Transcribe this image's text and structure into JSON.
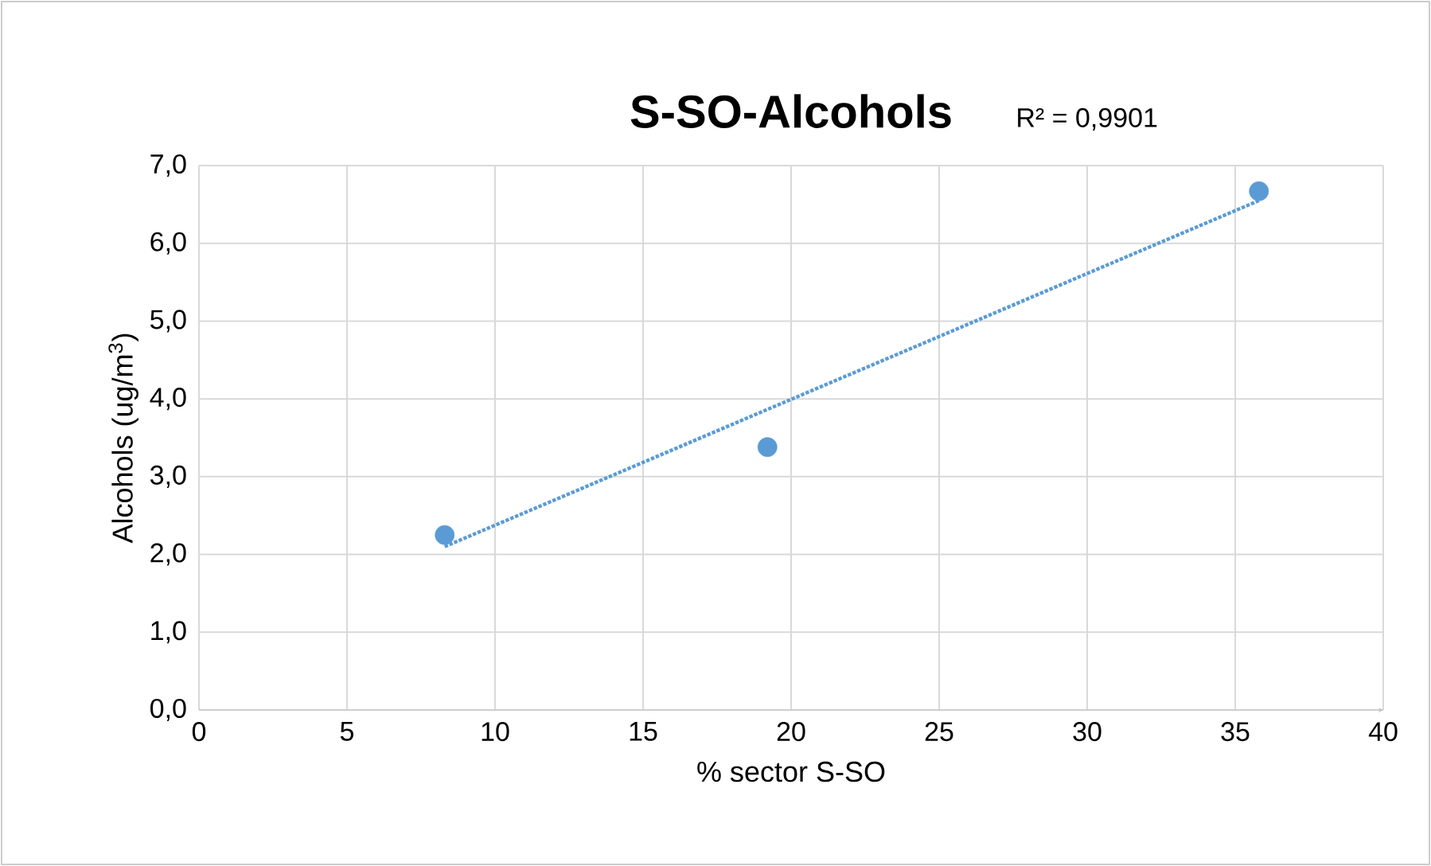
{
  "chart_data": {
    "type": "scatter",
    "title": "S-SO-Alcohols",
    "xlabel": "% sector S-SO",
    "ylabel": "Alcohols (ug/m$^{3}$)",
    "annotations": [
      "R² = 0,9901"
    ],
    "xlim": [
      0,
      40
    ],
    "xticks": [
      0,
      5,
      10,
      15,
      20,
      25,
      30,
      35,
      40
    ],
    "ylim": [
      0,
      7
    ],
    "yticks": [
      {
        "value": 0,
        "label": "0,0"
      },
      {
        "value": 1,
        "label": "1,0"
      },
      {
        "value": 2,
        "label": "2,0"
      },
      {
        "value": 3,
        "label": "3,0"
      },
      {
        "value": 4,
        "label": "4,0"
      },
      {
        "value": 5,
        "label": "5,0"
      },
      {
        "value": 6,
        "label": "6,0"
      },
      {
        "value": 7,
        "label": "7,0"
      }
    ],
    "grid": true,
    "series": [
      {
        "color": "#5b9bd5",
        "marker": "circle",
        "x": [
          8.3,
          19.2,
          35.8
        ],
        "values": [
          2.25,
          3.38,
          6.67
        ]
      },
      {
        "type": "line",
        "color": "#5b9bd5",
        "marker": "none",
        "line_style": "dotted",
        "x": [
          8.3,
          35.8
        ],
        "values": [
          2.1,
          6.55
        ]
      }
    ]
  }
}
